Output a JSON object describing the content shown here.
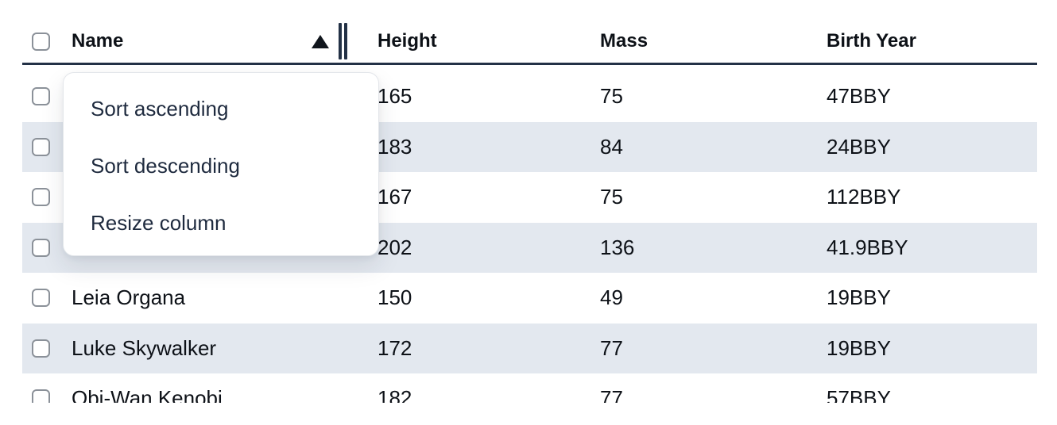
{
  "table": {
    "columns": [
      {
        "label": "Name",
        "sorted": "ascending"
      },
      {
        "label": "Height",
        "sorted": ""
      },
      {
        "label": "Mass",
        "sorted": ""
      },
      {
        "label": "Birth Year",
        "sorted": ""
      }
    ],
    "rows": [
      {
        "name": "",
        "height": "165",
        "mass": "75",
        "birth_year": "47BBY"
      },
      {
        "name": "",
        "height": "183",
        "mass": "84",
        "birth_year": "24BBY"
      },
      {
        "name": "",
        "height": "167",
        "mass": "75",
        "birth_year": "112BBY"
      },
      {
        "name": "",
        "height": "202",
        "mass": "136",
        "birth_year": "41.9BBY"
      },
      {
        "name": "Leia Organa",
        "height": "150",
        "mass": "49",
        "birth_year": "19BBY"
      },
      {
        "name": "Luke Skywalker",
        "height": "172",
        "mass": "77",
        "birth_year": "19BBY"
      },
      {
        "name": "Obi-Wan Kenobi",
        "height": "182",
        "mass": "77",
        "birth_year": "57BBY"
      }
    ]
  },
  "context_menu": {
    "items": [
      "Sort ascending",
      "Sort descending",
      "Resize column"
    ]
  },
  "icons": {
    "sort_indicator": "sort-ascending-triangle",
    "resize_handle": "double-vertical-bars"
  },
  "colors": {
    "stripe": "#e3e8ef",
    "header_rule": "#233146",
    "text": "#0d1117",
    "menu_text": "#1e2a3e",
    "checkbox_border": "#8b9199",
    "popup_border": "#e3e6ea"
  }
}
